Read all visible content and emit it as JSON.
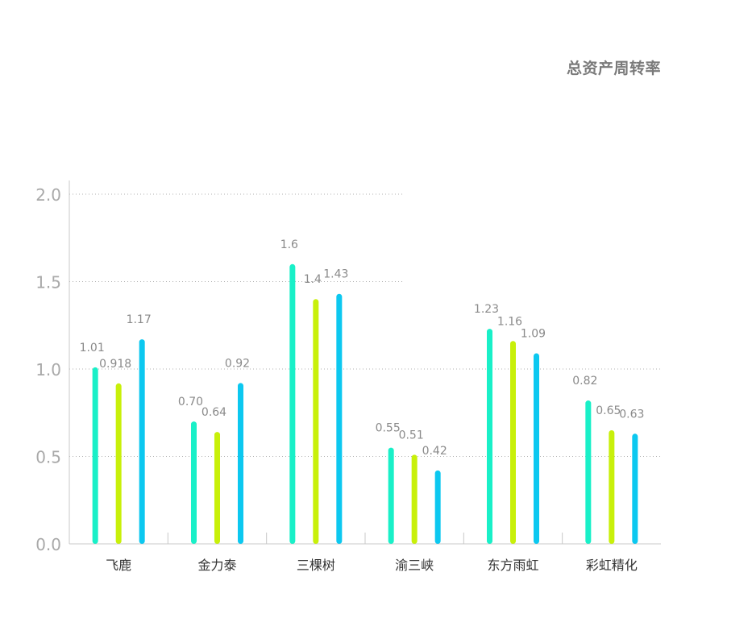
{
  "chart_data": {
    "type": "bar",
    "title": "总资产周转率",
    "xlabel": "",
    "ylabel": "",
    "ylim": [
      0,
      2.0
    ],
    "yticks": [
      "0.0",
      "0.5",
      "1.0",
      "1.5",
      "2.0"
    ],
    "grid": true,
    "legend": "none",
    "categories": [
      "飞鹿",
      "金力泰",
      "三棵树",
      "渝三峡",
      "东方雨虹",
      "彩虹精化"
    ],
    "series": [
      {
        "color": "#19f0c8",
        "values": [
          1.01,
          0.7,
          1.6,
          0.55,
          1.23,
          0.82
        ],
        "labels": [
          "1.01",
          "0.70",
          "1.6",
          "0.55",
          "1.23",
          "0.82"
        ]
      },
      {
        "color": "#c8f00a",
        "values": [
          0.918,
          0.64,
          1.4,
          0.51,
          1.16,
          0.65
        ],
        "labels": [
          "0.918",
          "0.64",
          "1.4",
          "0.51",
          "1.16",
          "0.65"
        ]
      },
      {
        "color": "#0cc8f0",
        "values": [
          1.17,
          0.92,
          1.43,
          0.42,
          1.09,
          0.63
        ],
        "labels": [
          "1.17",
          "0.92",
          "1.43",
          "0.42",
          "1.09",
          "0.63"
        ]
      }
    ]
  }
}
